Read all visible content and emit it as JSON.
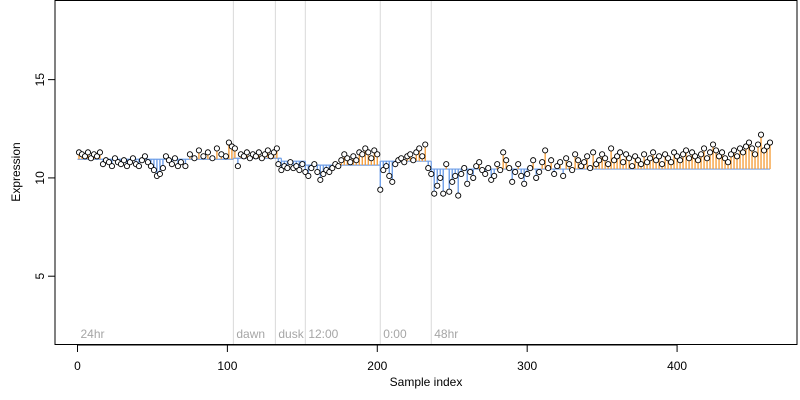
{
  "chart_data": {
    "type": "scatter",
    "xlabel": "Sample index",
    "ylabel": "Expression",
    "xlim": [
      -15,
      480
    ],
    "ylim": [
      1.5,
      19
    ],
    "x_ticks": [
      0,
      100,
      200,
      300,
      400
    ],
    "y_ticks": [
      5,
      10,
      15
    ],
    "grid": false,
    "baseline_segments": [
      {
        "from": 0,
        "to": 104,
        "y": 10.95
      },
      {
        "from": 104,
        "to": 136,
        "y": 11.0
      },
      {
        "from": 136,
        "to": 152,
        "y": 10.85
      },
      {
        "from": 152,
        "to": 202,
        "y": 10.65
      },
      {
        "from": 202,
        "to": 236,
        "y": 10.85
      },
      {
        "from": 236,
        "to": 462,
        "y": 10.45
      }
    ],
    "colors": {
      "above": "#f5a142",
      "below": "#6f9fe8",
      "point_fill": "#ffffff",
      "point_stroke": "#000000",
      "vline": "#d9d9d9",
      "vline_label": "#a6a6a6"
    },
    "vertical_lines": [
      {
        "x": 104,
        "label": "dawn"
      },
      {
        "x": 132,
        "label": "dusk"
      },
      {
        "x": 152,
        "label": "12:00"
      },
      {
        "x": 202,
        "label": "0:00"
      },
      {
        "x": 236,
        "label": "48hr"
      }
    ],
    "annotations": [
      {
        "x": 2,
        "y": 2.0,
        "text": "24hr"
      }
    ],
    "points": [
      [
        1,
        11.3
      ],
      [
        3,
        11.2
      ],
      [
        5,
        11.1
      ],
      [
        7,
        11.3
      ],
      [
        9,
        11.0
      ],
      [
        11,
        11.2
      ],
      [
        13,
        11.1
      ],
      [
        15,
        11.3
      ],
      [
        17,
        10.7
      ],
      [
        19,
        10.9
      ],
      [
        21,
        10.8
      ],
      [
        23,
        10.6
      ],
      [
        25,
        11.0
      ],
      [
        27,
        10.8
      ],
      [
        29,
        10.7
      ],
      [
        31,
        10.9
      ],
      [
        33,
        10.6
      ],
      [
        35,
        10.8
      ],
      [
        37,
        11.0
      ],
      [
        39,
        10.7
      ],
      [
        41,
        10.6
      ],
      [
        43,
        10.9
      ],
      [
        45,
        11.1
      ],
      [
        47,
        10.8
      ],
      [
        49,
        10.6
      ],
      [
        51,
        10.4
      ],
      [
        53,
        10.1
      ],
      [
        55,
        10.2
      ],
      [
        57,
        10.5
      ],
      [
        59,
        11.1
      ],
      [
        61,
        10.9
      ],
      [
        63,
        10.7
      ],
      [
        65,
        11.0
      ],
      [
        67,
        10.6
      ],
      [
        69,
        10.8
      ],
      [
        72,
        10.6
      ],
      [
        75,
        11.2
      ],
      [
        78,
        11.0
      ],
      [
        81,
        11.4
      ],
      [
        84,
        11.1
      ],
      [
        87,
        11.3
      ],
      [
        90,
        11.0
      ],
      [
        93,
        11.5
      ],
      [
        96,
        11.2
      ],
      [
        99,
        11.1
      ],
      [
        101,
        11.8
      ],
      [
        103,
        11.6
      ],
      [
        105,
        11.5
      ],
      [
        107,
        10.6
      ],
      [
        109,
        11.2
      ],
      [
        111,
        11.1
      ],
      [
        113,
        11.3
      ],
      [
        115,
        11.0
      ],
      [
        117,
        11.2
      ],
      [
        119,
        11.1
      ],
      [
        121,
        11.3
      ],
      [
        123,
        11.0
      ],
      [
        125,
        11.2
      ],
      [
        127,
        11.4
      ],
      [
        129,
        11.1
      ],
      [
        131,
        11.3
      ],
      [
        133,
        11.5
      ],
      [
        134,
        10.7
      ],
      [
        136,
        10.4
      ],
      [
        138,
        10.6
      ],
      [
        140,
        10.5
      ],
      [
        142,
        10.8
      ],
      [
        144,
        10.5
      ],
      [
        146,
        10.6
      ],
      [
        148,
        10.4
      ],
      [
        150,
        10.7
      ],
      [
        152,
        10.3
      ],
      [
        154,
        10.1
      ],
      [
        156,
        10.5
      ],
      [
        158,
        10.7
      ],
      [
        160,
        10.3
      ],
      [
        162,
        9.9
      ],
      [
        164,
        10.2
      ],
      [
        166,
        10.4
      ],
      [
        168,
        10.3
      ],
      [
        170,
        10.5
      ],
      [
        172,
        10.7
      ],
      [
        174,
        10.6
      ],
      [
        176,
        10.9
      ],
      [
        178,
        11.2
      ],
      [
        180,
        11.0
      ],
      [
        182,
        10.8
      ],
      [
        184,
        11.1
      ],
      [
        186,
        10.9
      ],
      [
        188,
        11.3
      ],
      [
        190,
        11.2
      ],
      [
        192,
        11.5
      ],
      [
        194,
        11.3
      ],
      [
        196,
        11.0
      ],
      [
        198,
        11.4
      ],
      [
        200,
        11.2
      ],
      [
        202,
        9.4
      ],
      [
        204,
        10.4
      ],
      [
        206,
        10.6
      ],
      [
        208,
        10.1
      ],
      [
        210,
        9.8
      ],
      [
        212,
        10.7
      ],
      [
        214,
        10.9
      ],
      [
        216,
        11.0
      ],
      [
        218,
        10.8
      ],
      [
        220,
        11.1
      ],
      [
        222,
        11.2
      ],
      [
        224,
        10.9
      ],
      [
        226,
        11.3
      ],
      [
        228,
        11.5
      ],
      [
        230,
        11.1
      ],
      [
        232,
        11.7
      ],
      [
        234,
        10.5
      ],
      [
        236,
        10.2
      ],
      [
        238,
        9.2
      ],
      [
        240,
        9.6
      ],
      [
        242,
        10.0
      ],
      [
        244,
        9.2
      ],
      [
        246,
        10.7
      ],
      [
        248,
        9.3
      ],
      [
        250,
        9.8
      ],
      [
        252,
        10.1
      ],
      [
        254,
        9.1
      ],
      [
        256,
        10.2
      ],
      [
        258,
        10.5
      ],
      [
        260,
        9.7
      ],
      [
        262,
        10.3
      ],
      [
        264,
        10.0
      ],
      [
        266,
        10.6
      ],
      [
        268,
        10.8
      ],
      [
        270,
        10.4
      ],
      [
        272,
        10.2
      ],
      [
        274,
        10.5
      ],
      [
        276,
        9.9
      ],
      [
        278,
        10.1
      ],
      [
        280,
        10.7
      ],
      [
        282,
        10.4
      ],
      [
        284,
        11.3
      ],
      [
        286,
        10.9
      ],
      [
        288,
        10.5
      ],
      [
        290,
        9.8
      ],
      [
        292,
        10.3
      ],
      [
        294,
        10.7
      ],
      [
        296,
        10.1
      ],
      [
        298,
        9.7
      ],
      [
        300,
        10.2
      ],
      [
        302,
        10.5
      ],
      [
        304,
        10.9
      ],
      [
        306,
        10.0
      ],
      [
        308,
        10.3
      ],
      [
        310,
        10.8
      ],
      [
        312,
        11.4
      ],
      [
        314,
        10.5
      ],
      [
        316,
        10.9
      ],
      [
        318,
        10.2
      ],
      [
        320,
        10.6
      ],
      [
        322,
        10.8
      ],
      [
        324,
        10.1
      ],
      [
        326,
        11.0
      ],
      [
        328,
        10.7
      ],
      [
        330,
        10.4
      ],
      [
        332,
        11.2
      ],
      [
        334,
        10.9
      ],
      [
        336,
        10.6
      ],
      [
        338,
        10.8
      ],
      [
        340,
        11.1
      ],
      [
        342,
        10.5
      ],
      [
        344,
        11.3
      ],
      [
        346,
        10.7
      ],
      [
        348,
        10.9
      ],
      [
        350,
        11.2
      ],
      [
        352,
        11.0
      ],
      [
        354,
        10.7
      ],
      [
        356,
        11.5
      ],
      [
        358,
        10.9
      ],
      [
        360,
        11.1
      ],
      [
        362,
        11.3
      ],
      [
        364,
        10.8
      ],
      [
        366,
        11.2
      ],
      [
        368,
        11.0
      ],
      [
        370,
        10.6
      ],
      [
        372,
        11.1
      ],
      [
        374,
        10.9
      ],
      [
        376,
        10.7
      ],
      [
        378,
        11.2
      ],
      [
        380,
        10.8
      ],
      [
        382,
        11.0
      ],
      [
        384,
        11.3
      ],
      [
        386,
        10.9
      ],
      [
        388,
        11.1
      ],
      [
        390,
        10.7
      ],
      [
        392,
        11.2
      ],
      [
        394,
        11.0
      ],
      [
        396,
        10.8
      ],
      [
        398,
        11.3
      ],
      [
        400,
        11.1
      ],
      [
        402,
        10.9
      ],
      [
        404,
        11.2
      ],
      [
        406,
        11.4
      ],
      [
        408,
        11.0
      ],
      [
        410,
        11.3
      ],
      [
        412,
        11.1
      ],
      [
        414,
        10.9
      ],
      [
        416,
        11.2
      ],
      [
        418,
        11.5
      ],
      [
        420,
        11.0
      ],
      [
        422,
        11.3
      ],
      [
        424,
        11.7
      ],
      [
        426,
        11.4
      ],
      [
        428,
        11.1
      ],
      [
        430,
        11.3
      ],
      [
        432,
        11.0
      ],
      [
        434,
        10.8
      ],
      [
        436,
        11.2
      ],
      [
        438,
        11.4
      ],
      [
        440,
        11.1
      ],
      [
        442,
        11.5
      ],
      [
        444,
        11.3
      ],
      [
        446,
        11.6
      ],
      [
        448,
        11.8
      ],
      [
        450,
        11.5
      ],
      [
        452,
        11.2
      ],
      [
        454,
        11.7
      ],
      [
        456,
        12.2
      ],
      [
        458,
        11.4
      ],
      [
        460,
        11.6
      ],
      [
        462,
        11.8
      ]
    ]
  }
}
